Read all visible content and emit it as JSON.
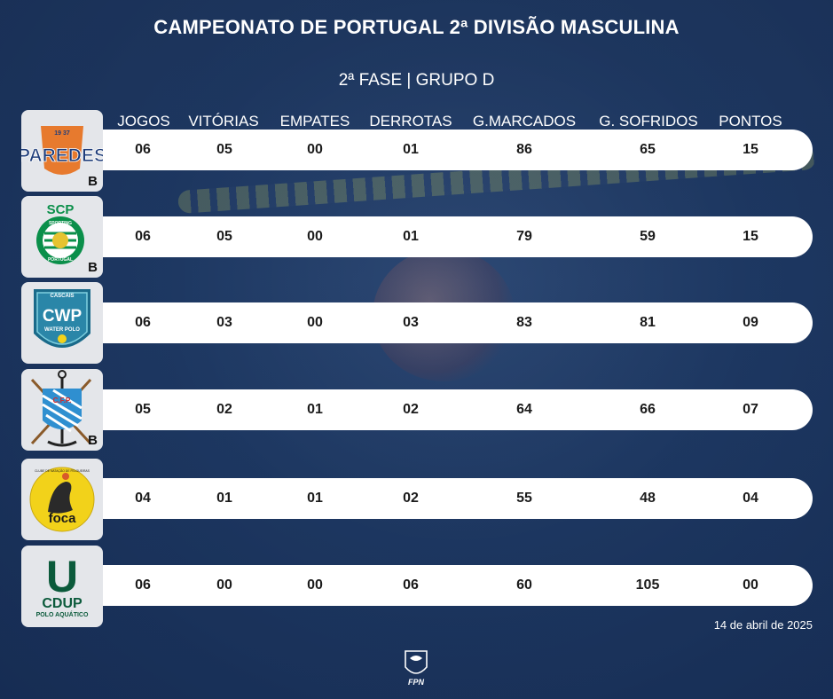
{
  "title": "CAMPEONATO DE PORTUGAL 2ª DIVISÃO MASCULINA",
  "subtitle": "2ª FASE | GRUPO D",
  "columns": [
    "JOGOS",
    "VITÓRIAS",
    "EMPATES",
    "DERROTAS",
    "G.MARCADOS",
    "G. SOFRIDOS",
    "PONTOS"
  ],
  "rows": [
    {
      "logo_text": "PAREDES",
      "logo_top": "19 37",
      "badge": "B",
      "values": [
        "06",
        "05",
        "00",
        "01",
        "86",
        "65",
        "15"
      ]
    },
    {
      "logo_text": "SCP",
      "logo_top": "SPORTING",
      "logo_bottom": "PORTUGAL",
      "badge": "B",
      "values": [
        "06",
        "05",
        "00",
        "01",
        "79",
        "59",
        "15"
      ]
    },
    {
      "logo_text": "CWP",
      "logo_top": "CASCAIS",
      "logo_bottom": "WATER POLO",
      "badge": "",
      "values": [
        "06",
        "03",
        "00",
        "03",
        "83",
        "81",
        "09"
      ]
    },
    {
      "logo_text": "C.F.P.",
      "badge": "B",
      "values": [
        "05",
        "02",
        "01",
        "02",
        "64",
        "66",
        "07"
      ]
    },
    {
      "logo_text": "foca",
      "logo_top": "CLUBE DE NATAÇÃO DE FELGUEIRAS",
      "badge": "",
      "values": [
        "04",
        "01",
        "01",
        "02",
        "55",
        "48",
        "04"
      ]
    },
    {
      "logo_text": "CDUP",
      "logo_top": "U",
      "logo_bottom": "POLO AQUÁTICO",
      "badge": "",
      "values": [
        "06",
        "00",
        "00",
        "06",
        "60",
        "105",
        "00"
      ]
    }
  ],
  "date": "14 de abril de 2025",
  "footer_logo_text": "FPN",
  "colors": {
    "accent_bar": "#ffffff",
    "background": "#22406e",
    "paredes": "#1f3d7a",
    "sporting": "#0a8f4a",
    "cascais": "#1a6a8a",
    "foca_yellow": "#f2d21a",
    "cdup_green": "#0b5a3b"
  }
}
